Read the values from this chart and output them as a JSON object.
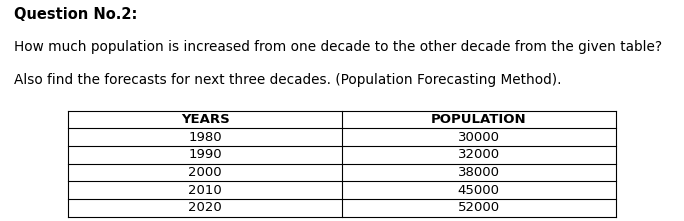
{
  "title": "Question No.2:",
  "question_line1": "How much population is increased from one decade to the other decade from the given table?",
  "question_line2": "Also find the forecasts for next three decades. (Population Forecasting Method).",
  "col_headers": [
    "YEARS",
    "POPULATION"
  ],
  "rows": [
    [
      "1980",
      "30000"
    ],
    [
      "1990",
      "32000"
    ],
    [
      "2000",
      "38000"
    ],
    [
      "2010",
      "45000"
    ],
    [
      "2020",
      "52000"
    ]
  ],
  "bg_color": "#ffffff",
  "table_line_color": "#000000",
  "header_font_size": 9.5,
  "body_font_size": 9.5,
  "title_font_size": 10.5,
  "question_font_size": 9.8
}
